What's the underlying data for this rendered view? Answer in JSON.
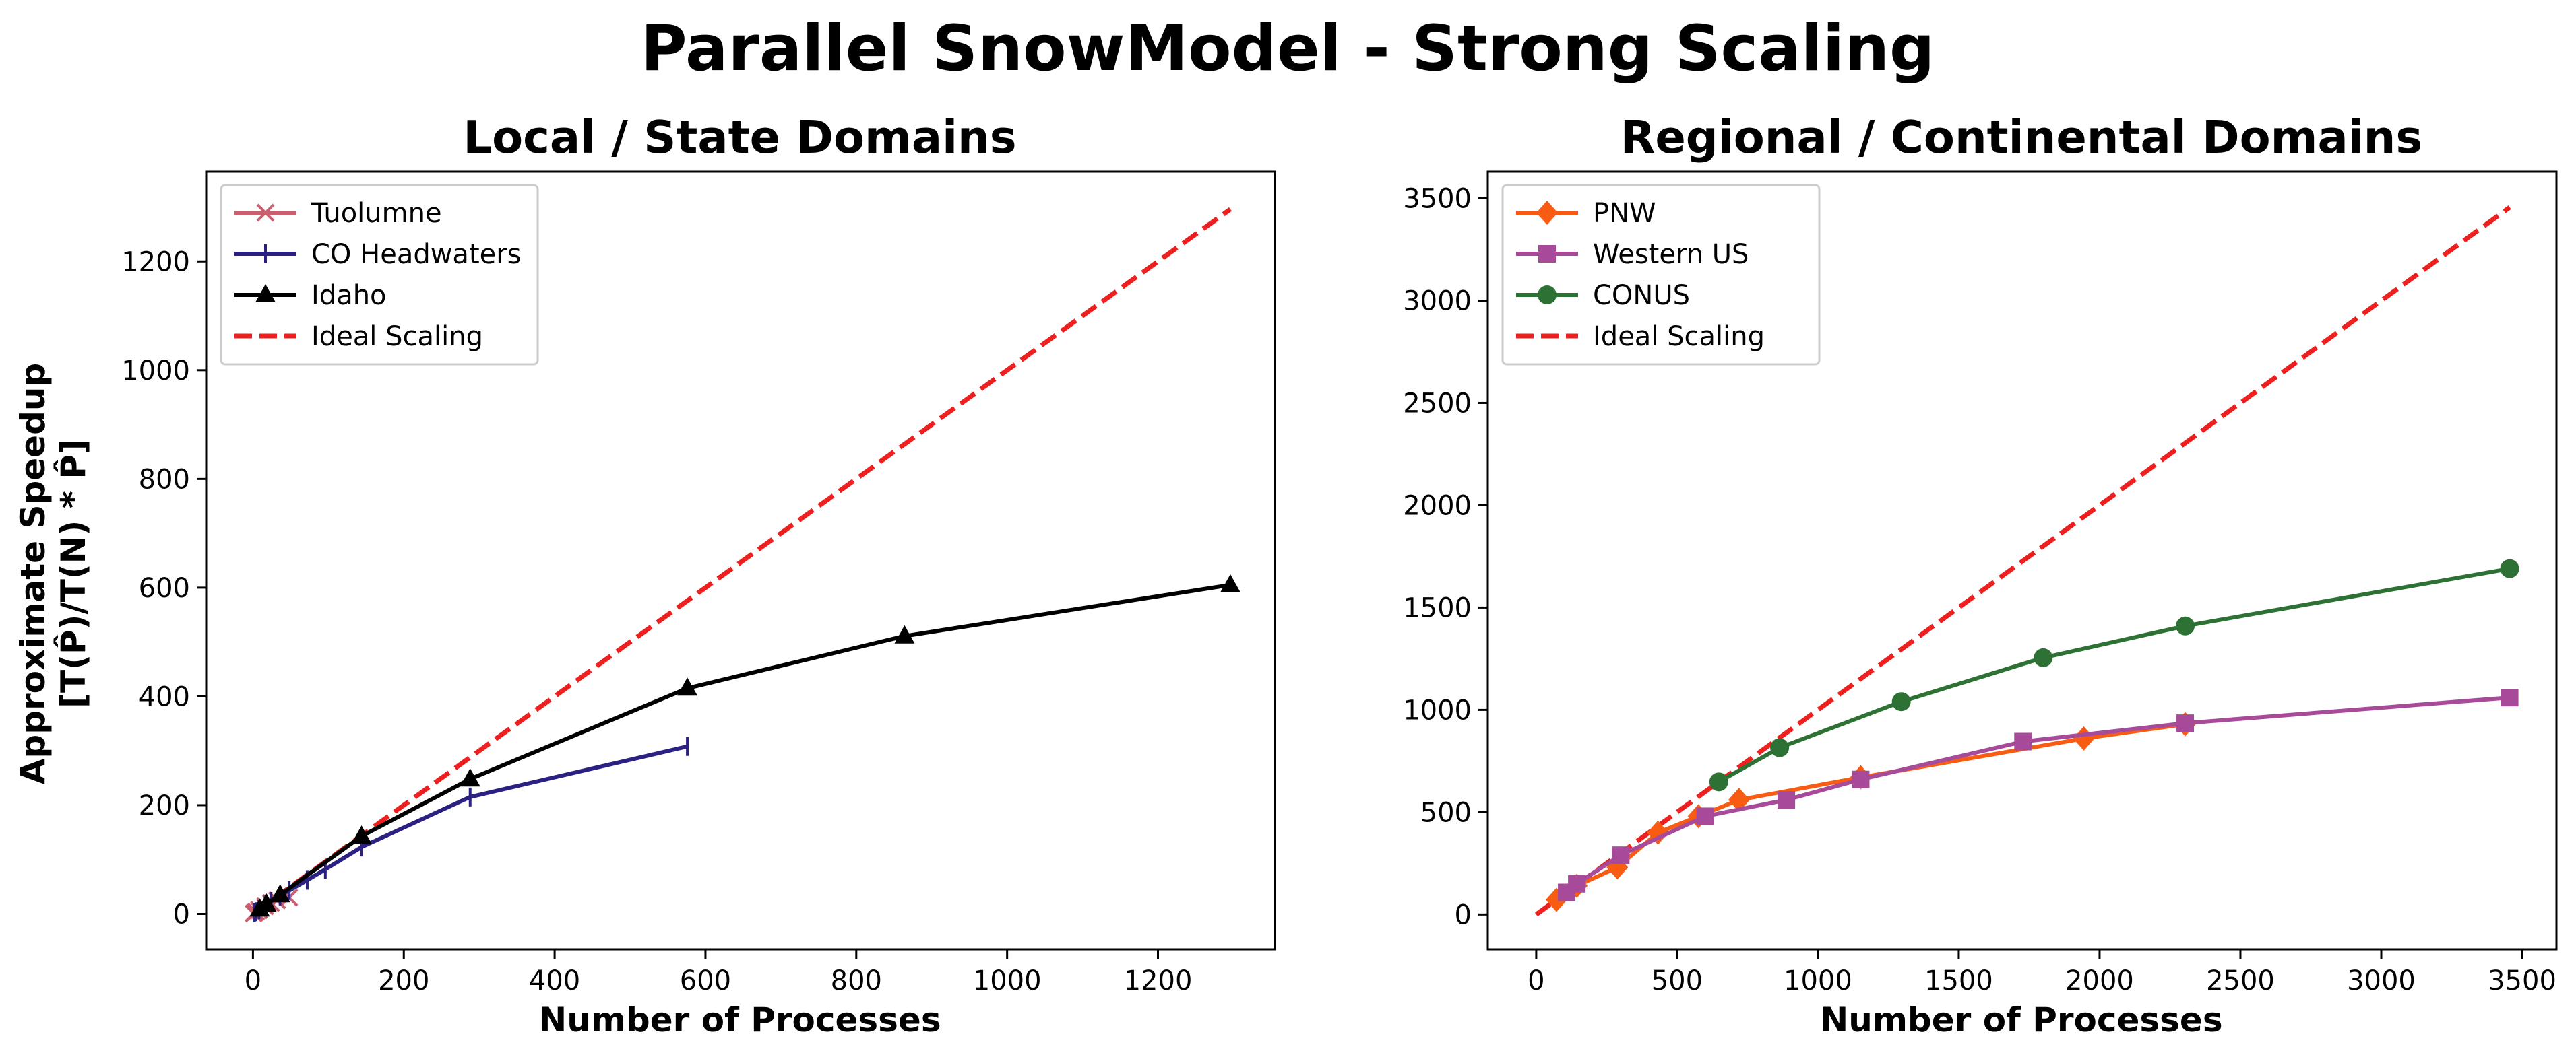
{
  "figure_title": "Parallel SnowModel - Strong Scaling",
  "chart_data": [
    {
      "type": "line",
      "title": "Local / State Domains",
      "xlabel": "Number of Processes",
      "ylabel_line1": "Approximate Speedup",
      "ylabel_line2": "[T(P̂)/T(N) * P̂]",
      "xlim": [
        -62,
        1355
      ],
      "ylim": [
        -65,
        1365
      ],
      "xticks": [
        0,
        200,
        400,
        600,
        800,
        1000,
        1200
      ],
      "yticks": [
        0,
        200,
        400,
        600,
        800,
        1000,
        1200
      ],
      "grid": false,
      "legend_position": "top-left",
      "series": [
        {
          "name": "Tuolumne",
          "color": "#cc5f6f",
          "marker": "x",
          "x": [
            1,
            2,
            4,
            8,
            16,
            24,
            32,
            48
          ],
          "y": [
            1,
            2,
            4,
            7,
            14,
            20,
            25,
            30
          ]
        },
        {
          "name": "CO Headwaters",
          "color": "#2b2183",
          "marker": "plus",
          "x": [
            2,
            4,
            8,
            16,
            24,
            36,
            48,
            72,
            96,
            144,
            288,
            576
          ],
          "y": [
            2,
            4,
            8,
            16,
            23,
            33,
            43,
            62,
            82,
            123,
            215,
            308
          ]
        },
        {
          "name": "Idaho",
          "color": "#000000",
          "marker": "triangle",
          "x": [
            9,
            18,
            36,
            144,
            288,
            576,
            864,
            1296
          ],
          "y": [
            9,
            18,
            35,
            143,
            248,
            415,
            511,
            605
          ]
        },
        {
          "name": "Ideal Scaling",
          "color": "#ee1f1f",
          "dashed": true,
          "x": [
            0,
            1296
          ],
          "y": [
            0,
            1296
          ]
        }
      ]
    },
    {
      "type": "line",
      "title": "Regional / Continental Domains",
      "xlabel": "Number of Processes",
      "xlim": [
        -172,
        3622
      ],
      "ylim": [
        -170,
        3630
      ],
      "xticks": [
        0,
        500,
        1000,
        1500,
        2000,
        2500,
        3000,
        3500
      ],
      "yticks": [
        0,
        500,
        1000,
        1500,
        2000,
        2500,
        3000,
        3500
      ],
      "grid": false,
      "legend_position": "top-left",
      "series": [
        {
          "name": "PNW",
          "color": "#f85c13",
          "marker": "diamond",
          "x": [
            72,
            144,
            288,
            432,
            576,
            720,
            1152,
            1944,
            2304
          ],
          "y": [
            72,
            140,
            230,
            400,
            480,
            560,
            670,
            860,
            930
          ]
        },
        {
          "name": "Western US",
          "color": "#a84a9a",
          "marker": "square",
          "x": [
            108,
            144,
            300,
            600,
            888,
            1152,
            1728,
            2304,
            3456
          ],
          "y": [
            108,
            150,
            290,
            480,
            560,
            660,
            845,
            935,
            1060
          ]
        },
        {
          "name": "CONUS",
          "color": "#2e7134",
          "marker": "circle",
          "x": [
            648,
            864,
            1296,
            1800,
            2304,
            3456
          ],
          "y": [
            648,
            815,
            1040,
            1255,
            1410,
            1690
          ]
        },
        {
          "name": "Ideal Scaling",
          "color": "#ee1f1f",
          "dashed": true,
          "x": [
            0,
            3456
          ],
          "y": [
            0,
            3456
          ]
        }
      ]
    }
  ]
}
